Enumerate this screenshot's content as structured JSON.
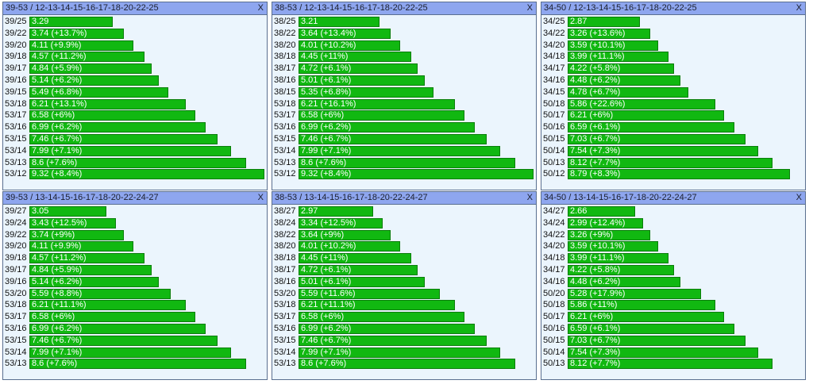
{
  "chart_data": [
    {
      "type": "bar",
      "title": "39-53 / 12-13-14-15-16-17-18-20-22-25",
      "close_label": "X",
      "categories": [
        "39/25",
        "39/22",
        "39/20",
        "39/18",
        "39/17",
        "39/16",
        "39/15",
        "53/18",
        "53/17",
        "53/16",
        "53/15",
        "53/14",
        "53/13",
        "53/12"
      ],
      "values": [
        3.29,
        3.74,
        4.11,
        4.57,
        4.84,
        5.14,
        5.49,
        6.21,
        6.58,
        6.99,
        7.46,
        7.99,
        8.6,
        9.32
      ],
      "labels": [
        "3.29",
        "3.74 (+13.7%)",
        "4.11 (+9.9%)",
        "4.57 (+11.2%)",
        "4.84 (+5.9%)",
        "5.14 (+6.2%)",
        "5.49 (+6.8%)",
        "6.21 (+13.1%)",
        "6.58 (+6%)",
        "6.99 (+6.2%)",
        "7.46 (+6.7%)",
        "7.99 (+7.1%)",
        "8.6 (+7.6%)",
        "9.32 (+8.4%)"
      ]
    },
    {
      "type": "bar",
      "title": "38-53 / 12-13-14-15-16-17-18-20-22-25",
      "close_label": "X",
      "categories": [
        "38/25",
        "38/22",
        "38/20",
        "38/18",
        "38/17",
        "38/16",
        "38/15",
        "53/18",
        "53/17",
        "53/16",
        "53/15",
        "53/14",
        "53/13",
        "53/12"
      ],
      "values": [
        3.21,
        3.64,
        4.01,
        4.45,
        4.72,
        5.01,
        5.35,
        6.21,
        6.58,
        6.99,
        7.46,
        7.99,
        8.6,
        9.32
      ],
      "labels": [
        "3.21",
        "3.64 (+13.4%)",
        "4.01 (+10.2%)",
        "4.45 (+11%)",
        "4.72 (+6.1%)",
        "5.01 (+6.1%)",
        "5.35 (+6.8%)",
        "6.21 (+16.1%)",
        "6.58 (+6%)",
        "6.99 (+6.2%)",
        "7.46 (+6.7%)",
        "7.99 (+7.1%)",
        "8.6 (+7.6%)",
        "9.32 (+8.4%)"
      ]
    },
    {
      "type": "bar",
      "title": "34-50 / 12-13-14-15-16-17-18-20-22-25",
      "close_label": "X",
      "categories": [
        "34/25",
        "34/22",
        "34/20",
        "34/18",
        "34/17",
        "34/16",
        "34/15",
        "50/18",
        "50/17",
        "50/16",
        "50/15",
        "50/14",
        "50/13",
        "50/12"
      ],
      "values": [
        2.87,
        3.26,
        3.59,
        3.99,
        4.22,
        4.48,
        4.78,
        5.86,
        6.21,
        6.59,
        7.03,
        7.54,
        8.12,
        8.79
      ],
      "labels": [
        "2.87",
        "3.26 (+13.6%)",
        "3.59 (+10.1%)",
        "3.99 (+11.1%)",
        "4.22 (+5.8%)",
        "4.48 (+6.2%)",
        "4.78 (+6.7%)",
        "5.86 (+22.6%)",
        "6.21 (+6%)",
        "6.59 (+6.1%)",
        "7.03 (+6.7%)",
        "7.54 (+7.3%)",
        "8.12 (+7.7%)",
        "8.79 (+8.3%)"
      ]
    },
    {
      "type": "bar",
      "title": "39-53 / 13-14-15-16-17-18-20-22-24-27",
      "close_label": "X",
      "categories": [
        "39/27",
        "39/24",
        "39/22",
        "39/20",
        "39/18",
        "39/17",
        "39/16",
        "53/20",
        "53/18",
        "53/17",
        "53/16",
        "53/15",
        "53/14",
        "53/13"
      ],
      "values": [
        3.05,
        3.43,
        3.74,
        4.11,
        4.57,
        4.84,
        5.14,
        5.59,
        6.21,
        6.58,
        6.99,
        7.46,
        7.99,
        8.6
      ],
      "labels": [
        "3.05",
        "3.43 (+12.5%)",
        "3.74 (+9%)",
        "4.11 (+9.9%)",
        "4.57 (+11.2%)",
        "4.84 (+5.9%)",
        "5.14 (+6.2%)",
        "5.59 (+8.8%)",
        "6.21 (+11.1%)",
        "6.58 (+6%)",
        "6.99 (+6.2%)",
        "7.46 (+6.7%)",
        "7.99 (+7.1%)",
        "8.6 (+7.6%)"
      ]
    },
    {
      "type": "bar",
      "title": "38-53 / 13-14-15-16-17-18-20-22-24-27",
      "close_label": "X",
      "categories": [
        "38/27",
        "38/24",
        "38/22",
        "38/20",
        "38/18",
        "38/17",
        "38/16",
        "53/20",
        "53/18",
        "53/17",
        "53/16",
        "53/15",
        "53/14",
        "53/13"
      ],
      "values": [
        2.97,
        3.34,
        3.64,
        4.01,
        4.45,
        4.72,
        5.01,
        5.59,
        6.21,
        6.58,
        6.99,
        7.46,
        7.99,
        8.6
      ],
      "labels": [
        "2.97",
        "3.34 (+12.5%)",
        "3.64 (+9%)",
        "4.01 (+10.2%)",
        "4.45 (+11%)",
        "4.72 (+6.1%)",
        "5.01 (+6.1%)",
        "5.59 (+11.6%)",
        "6.21 (+11.1%)",
        "6.58 (+6%)",
        "6.99 (+6.2%)",
        "7.46 (+6.7%)",
        "7.99 (+7.1%)",
        "8.6 (+7.6%)"
      ]
    },
    {
      "type": "bar",
      "title": "34-50 / 13-14-15-16-17-18-20-22-24-27",
      "close_label": "X",
      "categories": [
        "34/27",
        "34/24",
        "34/22",
        "34/20",
        "34/18",
        "34/17",
        "34/16",
        "50/20",
        "50/18",
        "50/17",
        "50/16",
        "50/15",
        "50/14",
        "50/13"
      ],
      "values": [
        2.66,
        2.99,
        3.26,
        3.59,
        3.99,
        4.22,
        4.48,
        5.28,
        5.86,
        6.21,
        6.59,
        7.03,
        7.54,
        8.12
      ],
      "labels": [
        "2.66",
        "2.99 (+12.4%)",
        "3.26 (+9%)",
        "3.59 (+10.1%)",
        "3.99 (+11.1%)",
        "4.22 (+5.8%)",
        "4.48 (+6.2%)",
        "5.28 (+17.9%)",
        "5.86 (+11%)",
        "6.21 (+6%)",
        "6.59 (+6.1%)",
        "7.03 (+6.7%)",
        "7.54 (+7.3%)",
        "8.12 (+7.7%)"
      ]
    }
  ],
  "colors": {
    "bar": "#11b811",
    "panel_bg": "#ebf5fd",
    "titlebar_bg": "#8ea6ef"
  }
}
